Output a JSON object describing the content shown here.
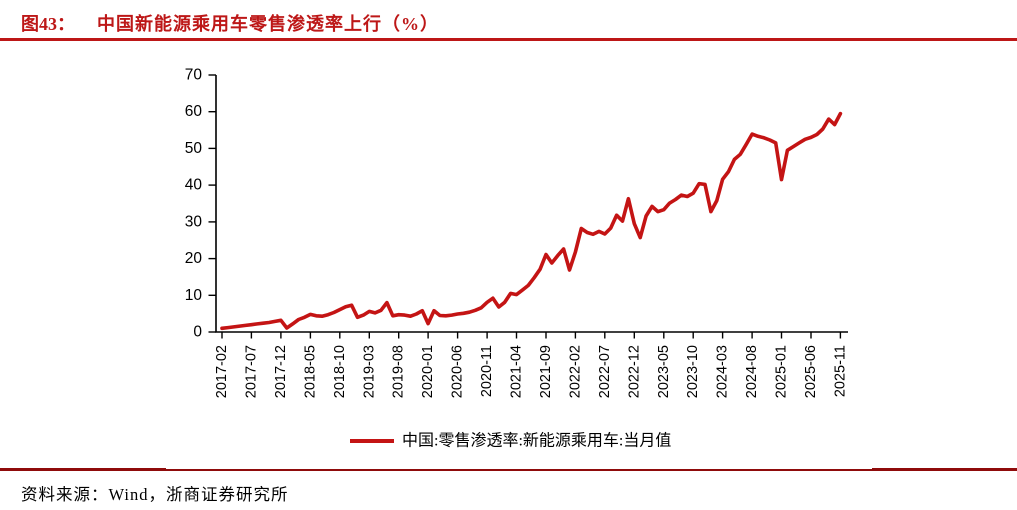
{
  "page": {
    "figure_label": "图43：",
    "figure_title": "中国新能源乘用车零售渗透率上行（%）",
    "source_text": "资料来源：Wind，浙商证券研究所",
    "accent_color": "#bd1717",
    "rule_color": "#8f0b0b"
  },
  "chart_data": {
    "type": "line",
    "title": "中国新能源乘用车零售渗透率上行（%）",
    "ylabel": "",
    "xlabel": "",
    "grid": false,
    "legend_position": "bottom-center",
    "line_color": "#c41414",
    "axis_color": "#000000",
    "ylim": [
      0,
      70
    ],
    "yticks": [
      0,
      10,
      20,
      30,
      40,
      50,
      60,
      70
    ],
    "start_month": "2017-02",
    "end_month": "2025-11",
    "x_tick_labels": [
      "2017-02",
      "2017-07",
      "2017-12",
      "2018-05",
      "2018-10",
      "2019-03",
      "2019-08",
      "2020-01",
      "2020-06",
      "2020-11",
      "2021-04",
      "2021-09",
      "2022-02",
      "2022-07",
      "2022-12",
      "2023-05",
      "2023-10",
      "2024-03",
      "2024-08",
      "2025-01",
      "2025-06",
      "2025-11"
    ],
    "series": [
      {
        "name": "中国:零售渗透率:新能源乘用车:当月值",
        "values": [
          1.0,
          1.2,
          1.4,
          1.6,
          1.8,
          2.0,
          2.2,
          2.4,
          2.6,
          2.9,
          3.2,
          1.1,
          2.2,
          3.4,
          4.0,
          4.8,
          4.4,
          4.3,
          4.7,
          5.3,
          6.1,
          6.9,
          7.3,
          4.0,
          4.6,
          5.6,
          5.2,
          5.9,
          8.0,
          4.4,
          4.7,
          4.6,
          4.3,
          4.9,
          5.8,
          2.3,
          5.8,
          4.5,
          4.4,
          4.6,
          4.9,
          5.1,
          5.4,
          5.9,
          6.6,
          8.1,
          9.2,
          6.8,
          8.1,
          10.5,
          10.2,
          11.4,
          12.7,
          14.8,
          17.1,
          21.1,
          18.8,
          20.8,
          22.6,
          16.9,
          21.8,
          28.2,
          27.1,
          26.6,
          27.4,
          26.7,
          28.3,
          31.8,
          30.2,
          36.3,
          29.5,
          25.7,
          31.6,
          34.2,
          32.8,
          33.3,
          35.1,
          36.1,
          37.3,
          36.9,
          37.8,
          40.4,
          40.2,
          32.8,
          35.8,
          41.6,
          43.7,
          47.0,
          48.4,
          51.1,
          53.9,
          53.3,
          52.9,
          52.3,
          51.5,
          41.5,
          49.5,
          50.5,
          51.5,
          52.5,
          53.0,
          53.8,
          55.3,
          58.0,
          56.5,
          59.5
        ]
      }
    ]
  }
}
